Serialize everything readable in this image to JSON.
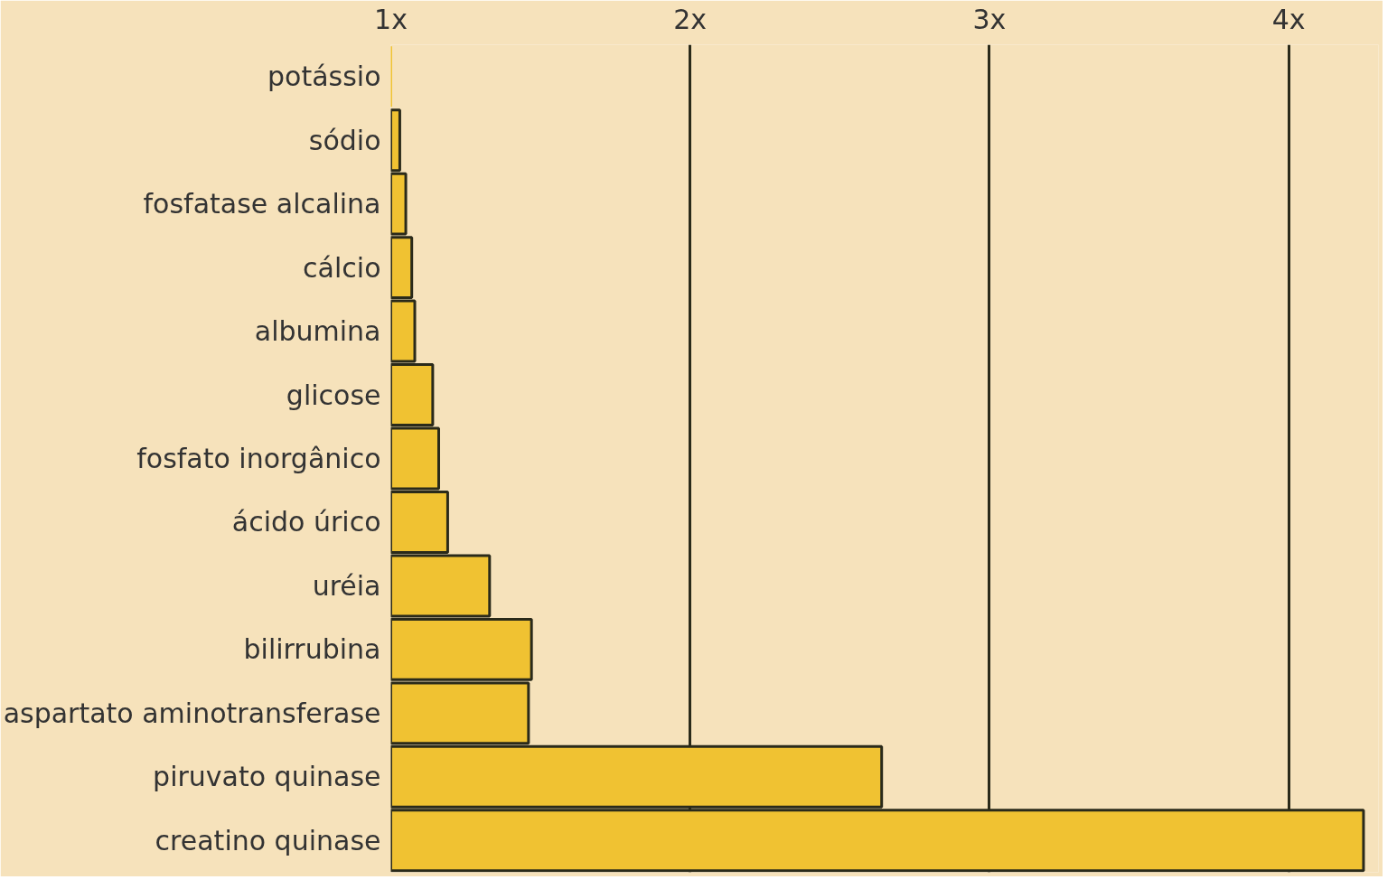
{
  "chart_data": {
    "type": "bar",
    "orientation": "horizontal",
    "categories": [
      "potássio",
      "sódio",
      "fosfatase alcalina",
      "cálcio",
      "albumina",
      "glicose",
      "fosfato inorgânico",
      "ácido úrico",
      "uréia",
      "bilirrubina",
      "aspartato aminotransferase",
      "piruvato quinase",
      "creatino quinase"
    ],
    "values": [
      1.0,
      1.03,
      1.05,
      1.07,
      1.08,
      1.14,
      1.16,
      1.19,
      1.33,
      1.47,
      1.46,
      2.64,
      4.25
    ],
    "color": "#f0c232",
    "xlim": [
      1,
      4.3
    ],
    "xticks": [
      {
        "value": 1,
        "label": "1x"
      },
      {
        "value": 2,
        "label": "2x"
      },
      {
        "value": 3,
        "label": "3x"
      },
      {
        "value": 4,
        "label": "4x"
      }
    ],
    "grid": "x"
  }
}
